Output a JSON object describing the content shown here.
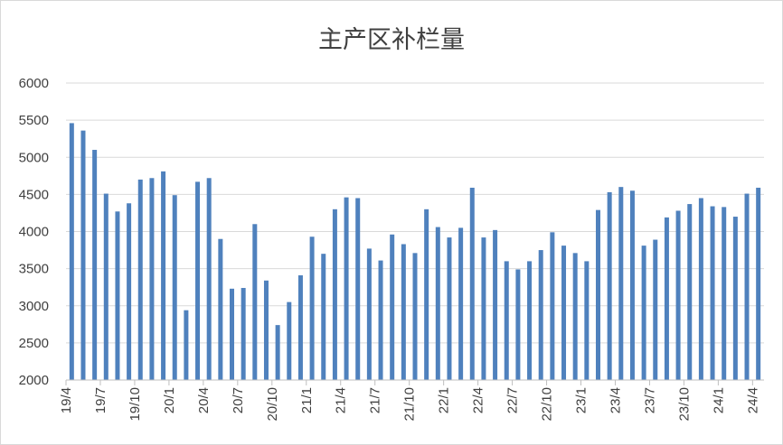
{
  "chart_data": {
    "type": "bar",
    "title": "主产区补栏量",
    "xlabel": "",
    "ylabel": "",
    "ylim": [
      2000,
      6000
    ],
    "yticks": [
      2000,
      2500,
      3000,
      3500,
      4000,
      4500,
      5000,
      5500,
      6000
    ],
    "grid": true,
    "legend": "none",
    "bar_color": "#4f81bd",
    "x_tick_labels": [
      "19/4",
      "19/7",
      "19/10",
      "20/1",
      "20/4",
      "20/7",
      "20/10",
      "21/1",
      "21/4",
      "21/7",
      "21/10",
      "22/1",
      "22/4",
      "22/7",
      "22/10",
      "23/1",
      "23/4",
      "23/7",
      "23/10",
      "24/1",
      "24/4"
    ],
    "categories": [
      "19/4",
      "19/5",
      "19/6",
      "19/7",
      "19/8",
      "19/9",
      "19/10",
      "19/11",
      "19/12",
      "20/1",
      "20/2",
      "20/3",
      "20/4",
      "20/5",
      "20/6",
      "20/7",
      "20/8",
      "20/9",
      "20/10",
      "20/11",
      "20/12",
      "21/1",
      "21/2",
      "21/3",
      "21/4",
      "21/5",
      "21/6",
      "21/7",
      "21/8",
      "21/9",
      "21/10",
      "21/11",
      "21/12",
      "22/1",
      "22/2",
      "22/3",
      "22/4",
      "22/5",
      "22/6",
      "22/7",
      "22/8",
      "22/9",
      "22/10",
      "22/11",
      "22/12",
      "23/1",
      "23/2",
      "23/3",
      "23/4",
      "23/5",
      "23/6",
      "23/7",
      "23/8",
      "23/9",
      "23/10",
      "23/11",
      "23/12",
      "24/1",
      "24/2",
      "24/3",
      "24/4"
    ],
    "values": [
      5460,
      5360,
      5100,
      4510,
      4270,
      4380,
      4700,
      4720,
      4810,
      4490,
      2940,
      4670,
      4720,
      3900,
      3230,
      3240,
      4100,
      3340,
      2740,
      3050,
      3410,
      3930,
      3700,
      4300,
      4460,
      4450,
      3770,
      3610,
      3960,
      3830,
      3710,
      4300,
      4060,
      3920,
      4050,
      4590,
      3920,
      4020,
      3600,
      3490,
      3600,
      3750,
      3990,
      3810,
      3710,
      3600,
      4290,
      4530,
      4600,
      4550,
      3810,
      3890,
      4190,
      4280,
      4370,
      4450,
      4340,
      4330,
      4200,
      4510,
      4590
    ]
  }
}
